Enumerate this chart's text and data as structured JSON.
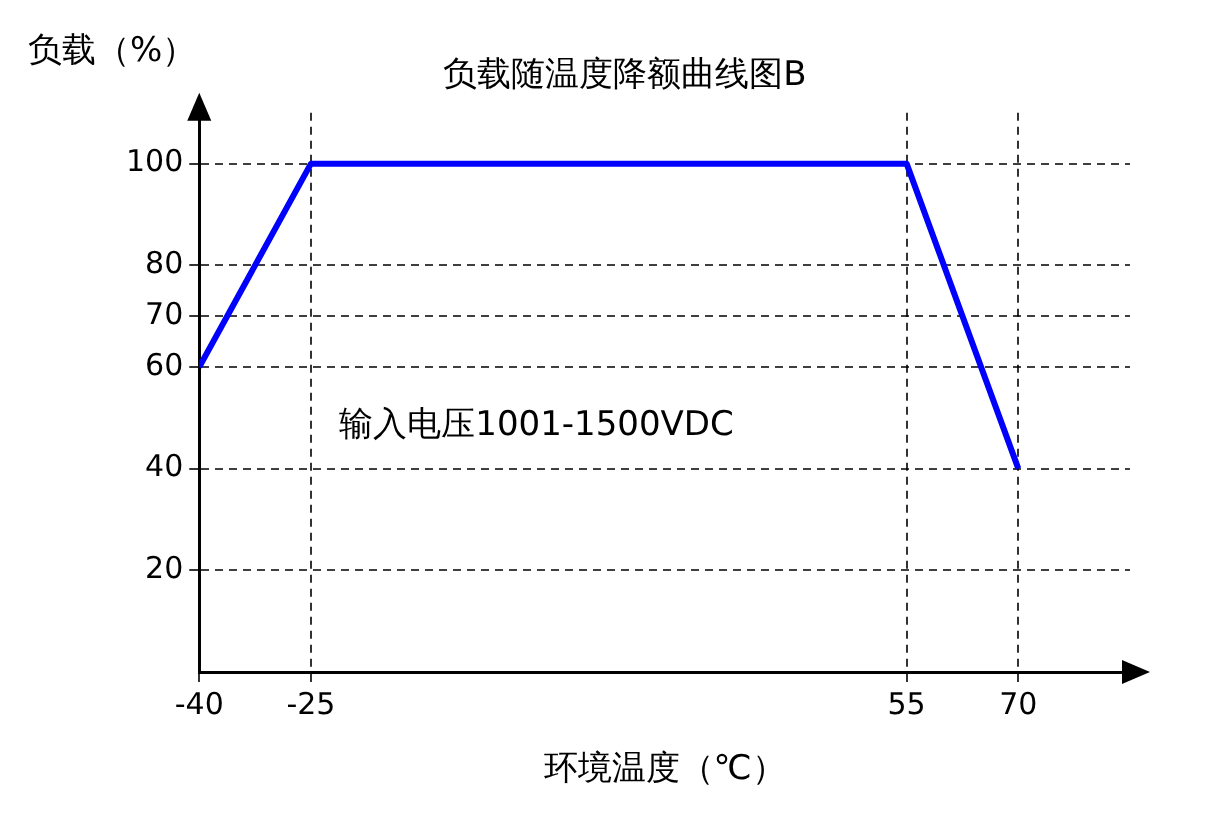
{
  "chart_data": {
    "type": "line",
    "title": "负载随温度降额曲线图B",
    "xlabel": "环境温度（℃）",
    "ylabel": "负载（%）",
    "x": [
      -40,
      -25,
      55,
      70
    ],
    "series": [
      {
        "color": "#0000ff",
        "values": [
          60,
          100,
          100,
          40
        ]
      }
    ],
    "xlim": [
      -40,
      85
    ],
    "xticks": [
      -40,
      -25,
      55,
      70
    ],
    "ylim": [
      0,
      110
    ],
    "yticks": [
      20,
      40,
      60,
      70,
      80,
      100
    ],
    "grid": true,
    "legend": false,
    "marker": "none",
    "line_style": "solid",
    "annotations": [
      "输入电压1001-1500VDC"
    ]
  }
}
